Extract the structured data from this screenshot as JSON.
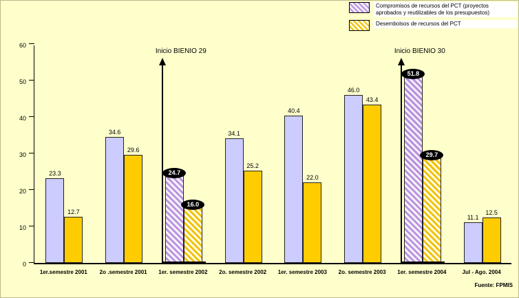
{
  "background_color": "#FFFFCC",
  "source": "Fuente: FPMIS",
  "colors": {
    "compromisos": "#CCCCFF",
    "desembolsos": "#FFCC00",
    "highlight_label_bg": "#000000",
    "highlight_label_text": "#FFFFFF"
  },
  "legend": {
    "items": [
      {
        "swatch": "hatched-purple-swatch",
        "label": "Compromisos de recursos del PCT (proyectos aprobados y reutilizables de los presupuestos)"
      },
      {
        "swatch": "hatched-yellow-swatch",
        "label": "Desembolsos de recursos del PCT"
      }
    ]
  },
  "chart_data": {
    "type": "bar",
    "title": "",
    "xlabel": "",
    "ylabel": "",
    "categories": [
      "1er.semestre 2001",
      "2o .semestre 2001",
      "1er. semestre 2002",
      "2o. semestre 2002",
      "1er. semestre 2003",
      "2o. semestre 2003",
      "1er. semestre 2004",
      "Jul - Ago. 2004"
    ],
    "series": [
      {
        "name": "Compromisos de recursos del PCT (proyectos aprobados y reutilizables de los presupuestos)",
        "color": "#CCCCFF",
        "values": [
          23.3,
          34.6,
          24.7,
          34.1,
          40.4,
          46.0,
          51.8,
          11.1
        ]
      },
      {
        "name": "Desembolsos de recursos del PCT",
        "color": "#FFCC00",
        "values": [
          12.7,
          29.6,
          16.0,
          25.2,
          22.0,
          43.4,
          29.7,
          12.5
        ]
      }
    ],
    "highlighted_categories": [
      2,
      6
    ],
    "annotations": [
      {
        "text": "Inicio BIENIO 29",
        "category_index": 2
      },
      {
        "text": "Inicio BIENIO 30",
        "category_index": 6
      }
    ],
    "ylim": [
      0,
      60
    ],
    "yticks": [
      0,
      10,
      20,
      30,
      40,
      50,
      60
    ],
    "ytick_step": 10,
    "grid": false,
    "legend_position": "top-right"
  }
}
